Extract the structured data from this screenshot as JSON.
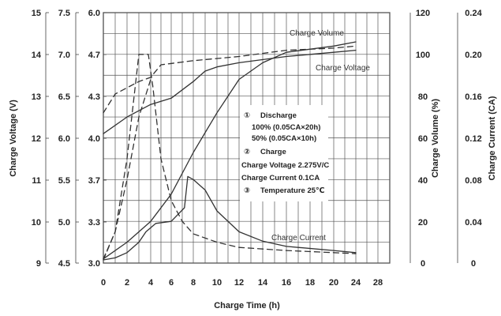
{
  "chart_data": {
    "type": "line",
    "xlabel": "Charge Time (h)",
    "x_ticks": [
      "0",
      "2",
      "4",
      "6",
      "8",
      "10",
      "12",
      "14",
      "16",
      "18",
      "20",
      "24",
      "28"
    ],
    "xlim": [
      0,
      28
    ],
    "axes": {
      "charge_voltage_12v": {
        "label": "Charge Voltage (V)",
        "ticks": [
          "15",
          "14",
          "13",
          "12",
          "11",
          "10",
          "9"
        ],
        "range": [
          9,
          15
        ]
      },
      "charge_voltage_6v": {
        "ticks": [
          "7.5",
          "7.0",
          "6.5",
          "6.0",
          "5.5",
          "5.0",
          "4.5"
        ],
        "range": [
          4.5,
          7.5
        ]
      },
      "charge_voltage_4v": {
        "ticks": [
          "6.0",
          "4.7",
          "4.3",
          "4.0",
          "3.7",
          "3.3",
          "3.0"
        ]
      },
      "charge_volume": {
        "label": "Charge Volume (%)",
        "ticks": [
          "120",
          "100",
          "80",
          "60",
          "40",
          "20",
          "0"
        ],
        "range": [
          0,
          120
        ]
      },
      "charge_current": {
        "label": "Charge Current (CA)",
        "ticks": [
          "0.24",
          "0.20",
          "0.16",
          "0.12",
          "0.08",
          "0.04",
          "0"
        ],
        "range": [
          0,
          0.24
        ]
      }
    },
    "annotations": {
      "charge_volume": "Charge Volume",
      "charge_voltage": "Charge Voltage",
      "charge_current": "Charge Current"
    },
    "notes": [
      {
        "marker": "①",
        "lines": [
          "Discharge",
          "100%  (0.05CA×20h)",
          "50%  (0.05CA×10h)"
        ]
      },
      {
        "marker": "②",
        "lines": [
          "Charge",
          "Charge Voltage 2.275V/C",
          "Charge Current 0.1CA"
        ]
      },
      {
        "marker": "③",
        "lines": [
          "Temperature 25℃"
        ]
      }
    ],
    "grid": true,
    "series": [
      {
        "key": "charge_volume_50",
        "axis": "charge_volume",
        "style": "dashed",
        "x": [
          0,
          1,
          2,
          3,
          4
        ],
        "y": [
          2,
          15,
          40,
          70,
          88
        ]
      },
      {
        "key": "charge_voltage_50",
        "axis": "charge_voltage_12v",
        "style": "dashed",
        "x": [
          0,
          1,
          2,
          3,
          4,
          5,
          8,
          12,
          16,
          20,
          24
        ],
        "y": [
          12.6,
          13.05,
          13.2,
          13.35,
          13.45,
          13.75,
          13.85,
          13.95,
          14.1,
          14.15,
          14.2
        ]
      },
      {
        "key": "charge_current_50",
        "axis": "charge_current",
        "style": "dashed",
        "x": [
          0,
          1,
          2,
          3,
          3.8,
          4.2,
          5,
          6,
          7,
          8,
          10,
          12,
          16,
          20,
          24
        ],
        "y": [
          0.003,
          0.03,
          0.1,
          0.2,
          0.2,
          0.17,
          0.1,
          0.06,
          0.04,
          0.028,
          0.02,
          0.015,
          0.012,
          0.01,
          0.009
        ]
      },
      {
        "key": "charge_voltage_100",
        "axis": "charge_voltage_12v",
        "style": "solid",
        "x": [
          0,
          2,
          4,
          6,
          8,
          9,
          10,
          12,
          16,
          20,
          24
        ],
        "y": [
          12.1,
          12.5,
          12.8,
          12.95,
          13.35,
          13.6,
          13.7,
          13.8,
          13.95,
          14.05,
          14.1
        ]
      },
      {
        "key": "charge_volume_100",
        "axis": "charge_volume",
        "style": "solid",
        "x": [
          0,
          2,
          4,
          6,
          8,
          10,
          12,
          14,
          16,
          20,
          24
        ],
        "y": [
          2,
          10,
          20,
          33,
          53,
          72,
          88,
          96,
          101,
          104,
          106
        ]
      },
      {
        "key": "charge_current_100",
        "axis": "charge_current",
        "style": "solid",
        "x": [
          0,
          1,
          2,
          3,
          3.6,
          4.5,
          6,
          7.2,
          7.5,
          8,
          9,
          10,
          12,
          14,
          16,
          20,
          24
        ],
        "y": [
          0.003,
          0.005,
          0.01,
          0.02,
          0.03,
          0.038,
          0.04,
          0.053,
          0.083,
          0.08,
          0.07,
          0.05,
          0.03,
          0.021,
          0.016,
          0.012,
          0.01
        ]
      }
    ]
  }
}
